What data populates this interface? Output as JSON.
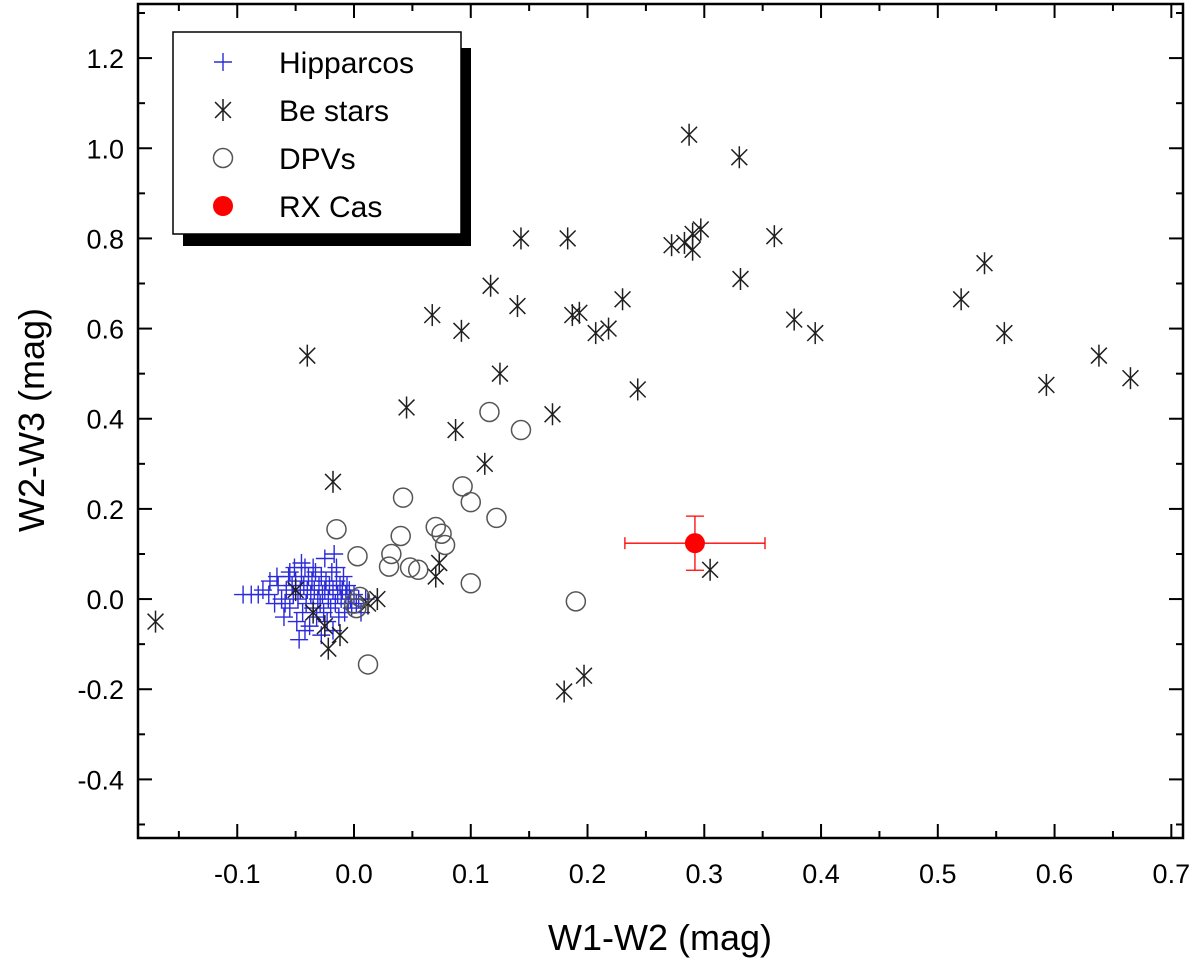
{
  "chart_data": {
    "type": "scatter",
    "title": "",
    "xlabel": "W1-W2 (mag)",
    "ylabel": "W2-W3 (mag)",
    "xlim": [
      -0.185,
      0.71
    ],
    "ylim": [
      -0.53,
      1.32
    ],
    "xticks": [
      -0.1,
      0.0,
      0.1,
      0.2,
      0.3,
      0.4,
      0.5,
      0.6,
      0.7
    ],
    "xtick_labels": [
      "-0.1",
      "0.0",
      "0.1",
      "0.2",
      "0.3",
      "0.4",
      "0.5",
      "0.6",
      "0.7"
    ],
    "yticks": [
      -0.4,
      -0.2,
      0.0,
      0.2,
      0.4,
      0.6,
      0.8,
      1.0,
      1.2
    ],
    "ytick_labels": [
      "-0.4",
      "-0.2",
      "0.0",
      "0.2",
      "0.4",
      "0.6",
      "0.8",
      "1.0",
      "1.2"
    ],
    "grid": false,
    "legend_position": "top-left",
    "series": [
      {
        "name": "Hipparcos",
        "marker": "plus",
        "color": "#2b2bd9",
        "points": [
          [
            -0.095,
            0.01
          ],
          [
            -0.088,
            0.01
          ],
          [
            -0.082,
            0.01
          ],
          [
            -0.078,
            0.02
          ],
          [
            -0.073,
            0.01
          ],
          [
            -0.072,
            0.04
          ],
          [
            -0.068,
            -0.01
          ],
          [
            -0.065,
            0.03
          ],
          [
            -0.062,
            0.0
          ],
          [
            -0.06,
            -0.04
          ],
          [
            -0.058,
            0.02
          ],
          [
            -0.056,
            0.05
          ],
          [
            -0.055,
            -0.02
          ],
          [
            -0.053,
            0.03
          ],
          [
            -0.052,
            0.01
          ],
          [
            -0.05,
            0.04
          ],
          [
            -0.049,
            -0.05
          ],
          [
            -0.048,
            0.0
          ],
          [
            -0.047,
            -0.09
          ],
          [
            -0.046,
            0.02
          ],
          [
            -0.045,
            0.05
          ],
          [
            -0.044,
            -0.03
          ],
          [
            -0.043,
            0.03
          ],
          [
            -0.042,
            0.07
          ],
          [
            -0.041,
            -0.01
          ],
          [
            -0.04,
            0.02
          ],
          [
            -0.039,
            0.05
          ],
          [
            -0.038,
            -0.06
          ],
          [
            -0.037,
            0.01
          ],
          [
            -0.036,
            0.04
          ],
          [
            -0.035,
            -0.02
          ],
          [
            -0.034,
            0.02
          ],
          [
            -0.033,
            0.06
          ],
          [
            -0.032,
            -0.04
          ],
          [
            -0.031,
            0.0
          ],
          [
            -0.03,
            0.03
          ],
          [
            -0.029,
            -0.01
          ],
          [
            -0.028,
            0.05
          ],
          [
            -0.027,
            0.01
          ],
          [
            -0.026,
            -0.03
          ],
          [
            -0.025,
            0.02
          ],
          [
            -0.024,
            0.04
          ],
          [
            -0.023,
            -0.05
          ],
          [
            -0.022,
            0.0
          ],
          [
            -0.021,
            0.03
          ],
          [
            -0.02,
            -0.02
          ],
          [
            -0.019,
            0.06
          ],
          [
            -0.018,
            0.02
          ],
          [
            -0.017,
            0.1
          ],
          [
            -0.016,
            -0.01
          ],
          [
            -0.015,
            0.04
          ],
          [
            -0.014,
            0.01
          ],
          [
            -0.013,
            -0.04
          ],
          [
            -0.012,
            0.03
          ],
          [
            -0.011,
            0.0
          ],
          [
            -0.01,
            0.02
          ],
          [
            -0.009,
            0.05
          ],
          [
            -0.008,
            -0.03
          ],
          [
            -0.007,
            0.01
          ],
          [
            -0.006,
            0.03
          ],
          [
            -0.005,
            -0.01
          ],
          [
            -0.004,
            0.02
          ],
          [
            -0.003,
            0.0
          ],
          [
            -0.002,
            -0.02
          ],
          [
            0.0,
            0.01
          ],
          [
            0.002,
            -0.01
          ],
          [
            0.004,
            0.0
          ],
          [
            0.006,
            -0.03
          ],
          [
            0.01,
            0.0
          ],
          [
            -0.055,
            0.06
          ],
          [
            -0.045,
            0.08
          ],
          [
            -0.035,
            0.07
          ],
          [
            -0.025,
            0.09
          ],
          [
            -0.015,
            0.07
          ],
          [
            -0.042,
            -0.07
          ],
          [
            -0.028,
            -0.08
          ],
          [
            -0.018,
            -0.07
          ],
          [
            -0.066,
            0.05
          ],
          [
            -0.059,
            -0.01
          ],
          [
            -0.051,
            0.07
          ]
        ]
      },
      {
        "name": "Be stars",
        "marker": "asterisk",
        "color": "#1f1f1f",
        "points": [
          [
            -0.17,
            -0.05
          ],
          [
            -0.04,
            0.54
          ],
          [
            -0.018,
            0.26
          ],
          [
            0.045,
            0.425
          ],
          [
            0.067,
            0.63
          ],
          [
            0.087,
            0.375
          ],
          [
            0.092,
            0.595
          ],
          [
            0.112,
            0.3
          ],
          [
            0.117,
            0.695
          ],
          [
            0.125,
            0.5
          ],
          [
            0.14,
            0.65
          ],
          [
            0.143,
            0.8
          ],
          [
            0.17,
            0.41
          ],
          [
            0.183,
            0.8
          ],
          [
            0.187,
            0.63
          ],
          [
            0.193,
            0.635
          ],
          [
            0.207,
            0.59
          ],
          [
            0.218,
            0.6
          ],
          [
            0.23,
            0.665
          ],
          [
            0.243,
            0.465
          ],
          [
            0.272,
            0.785
          ],
          [
            0.283,
            0.79
          ],
          [
            0.287,
            1.03
          ],
          [
            0.29,
            0.81
          ],
          [
            0.29,
            0.775
          ],
          [
            0.297,
            0.82
          ],
          [
            0.33,
            0.98
          ],
          [
            0.331,
            0.71
          ],
          [
            0.305,
            0.065
          ],
          [
            0.36,
            0.805
          ],
          [
            0.377,
            0.62
          ],
          [
            0.395,
            0.59
          ],
          [
            0.52,
            0.665
          ],
          [
            0.54,
            0.745
          ],
          [
            0.557,
            0.59
          ],
          [
            0.593,
            0.475
          ],
          [
            0.638,
            0.54
          ],
          [
            0.665,
            0.49
          ],
          [
            0.18,
            -0.205
          ],
          [
            0.197,
            -0.17
          ],
          [
            0.073,
            0.08
          ],
          [
            0.07,
            0.05
          ],
          [
            -0.05,
            0.02
          ],
          [
            -0.035,
            -0.03
          ],
          [
            -0.025,
            -0.06
          ],
          [
            -0.022,
            -0.11
          ],
          [
            -0.012,
            -0.08
          ],
          [
            0.02,
            0.0
          ],
          [
            0.012,
            -0.01
          ]
        ]
      },
      {
        "name": "DPVs",
        "marker": "circle-open",
        "color": "#555555",
        "points": [
          [
            -0.015,
            0.155
          ],
          [
            0.003,
            0.095
          ],
          [
            0.012,
            -0.145
          ],
          [
            0.03,
            0.072
          ],
          [
            0.032,
            0.1
          ],
          [
            0.04,
            0.14
          ],
          [
            0.042,
            0.225
          ],
          [
            0.048,
            0.07
          ],
          [
            0.055,
            0.065
          ],
          [
            0.07,
            0.16
          ],
          [
            0.075,
            0.145
          ],
          [
            0.078,
            0.12
          ],
          [
            0.093,
            0.25
          ],
          [
            0.1,
            0.215
          ],
          [
            0.1,
            0.035
          ],
          [
            0.116,
            0.415
          ],
          [
            0.122,
            0.18
          ],
          [
            0.143,
            0.375
          ],
          [
            0.19,
            -0.005
          ],
          [
            0.0,
            -0.01
          ],
          [
            0.002,
            -0.02
          ],
          [
            0.005,
            0.005
          ]
        ]
      },
      {
        "name": "RX Cas",
        "marker": "circle-filled",
        "color": "#ff0000",
        "points": [
          [
            0.292,
            0.124
          ]
        ],
        "x_error": [
          [
            0.06,
            0.06
          ]
        ],
        "y_error": [
          [
            0.06,
            0.06
          ]
        ]
      }
    ],
    "legend": [
      {
        "label": "Hipparcos",
        "marker": "plus"
      },
      {
        "label": "Be stars",
        "marker": "asterisk"
      },
      {
        "label": "DPVs",
        "marker": "circle-open"
      },
      {
        "label": "RX Cas",
        "marker": "circle-filled"
      }
    ]
  }
}
